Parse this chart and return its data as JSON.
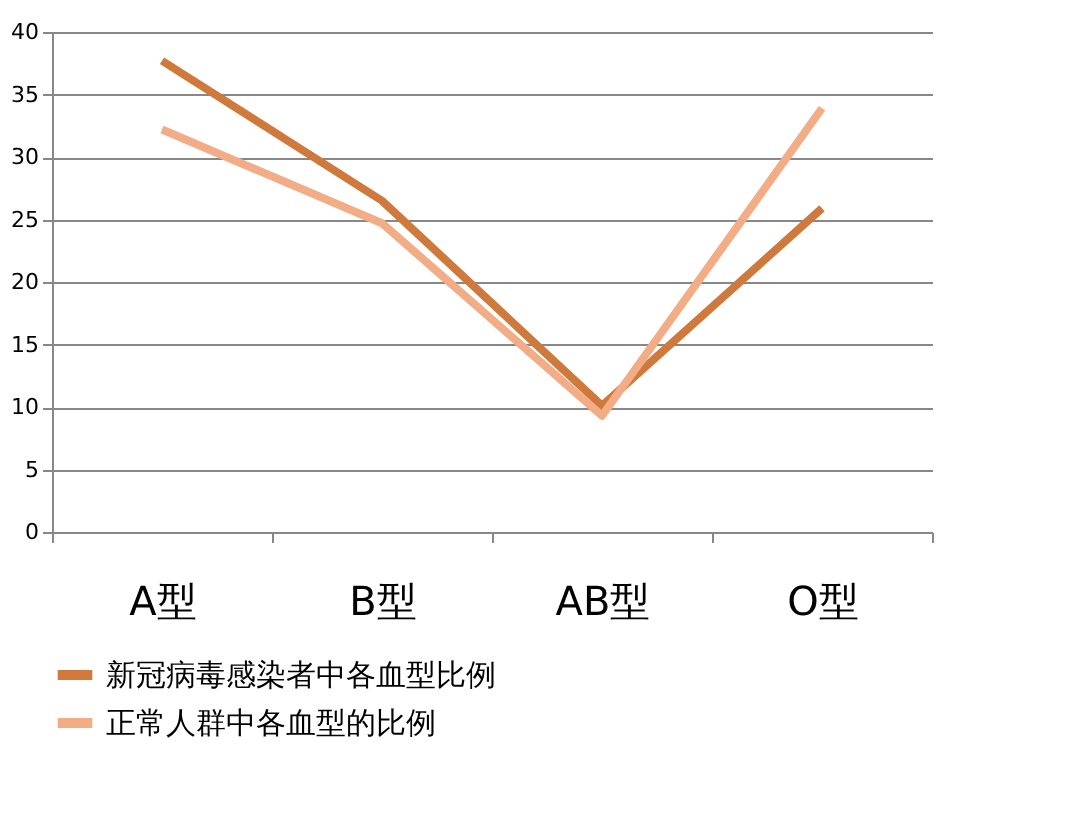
{
  "chart_data": {
    "type": "line",
    "categories": [
      "A型",
      "B型",
      "AB型",
      "O型"
    ],
    "series": [
      {
        "name": "新冠病毒感染者中各血型比例",
        "color": "#cf7a3c",
        "values": [
          37.7,
          26.5,
          10.1,
          25.9
        ]
      },
      {
        "name": "正常人群中各血型的比例",
        "color": "#f2ac86",
        "values": [
          32.2,
          24.7,
          9.3,
          33.9
        ]
      }
    ],
    "ylim": [
      0,
      40
    ],
    "yticks": [
      0,
      5,
      10,
      15,
      20,
      25,
      30,
      35,
      40
    ],
    "grid": "y",
    "legend": "bottom",
    "marker": "none",
    "line_style": "solid"
  }
}
